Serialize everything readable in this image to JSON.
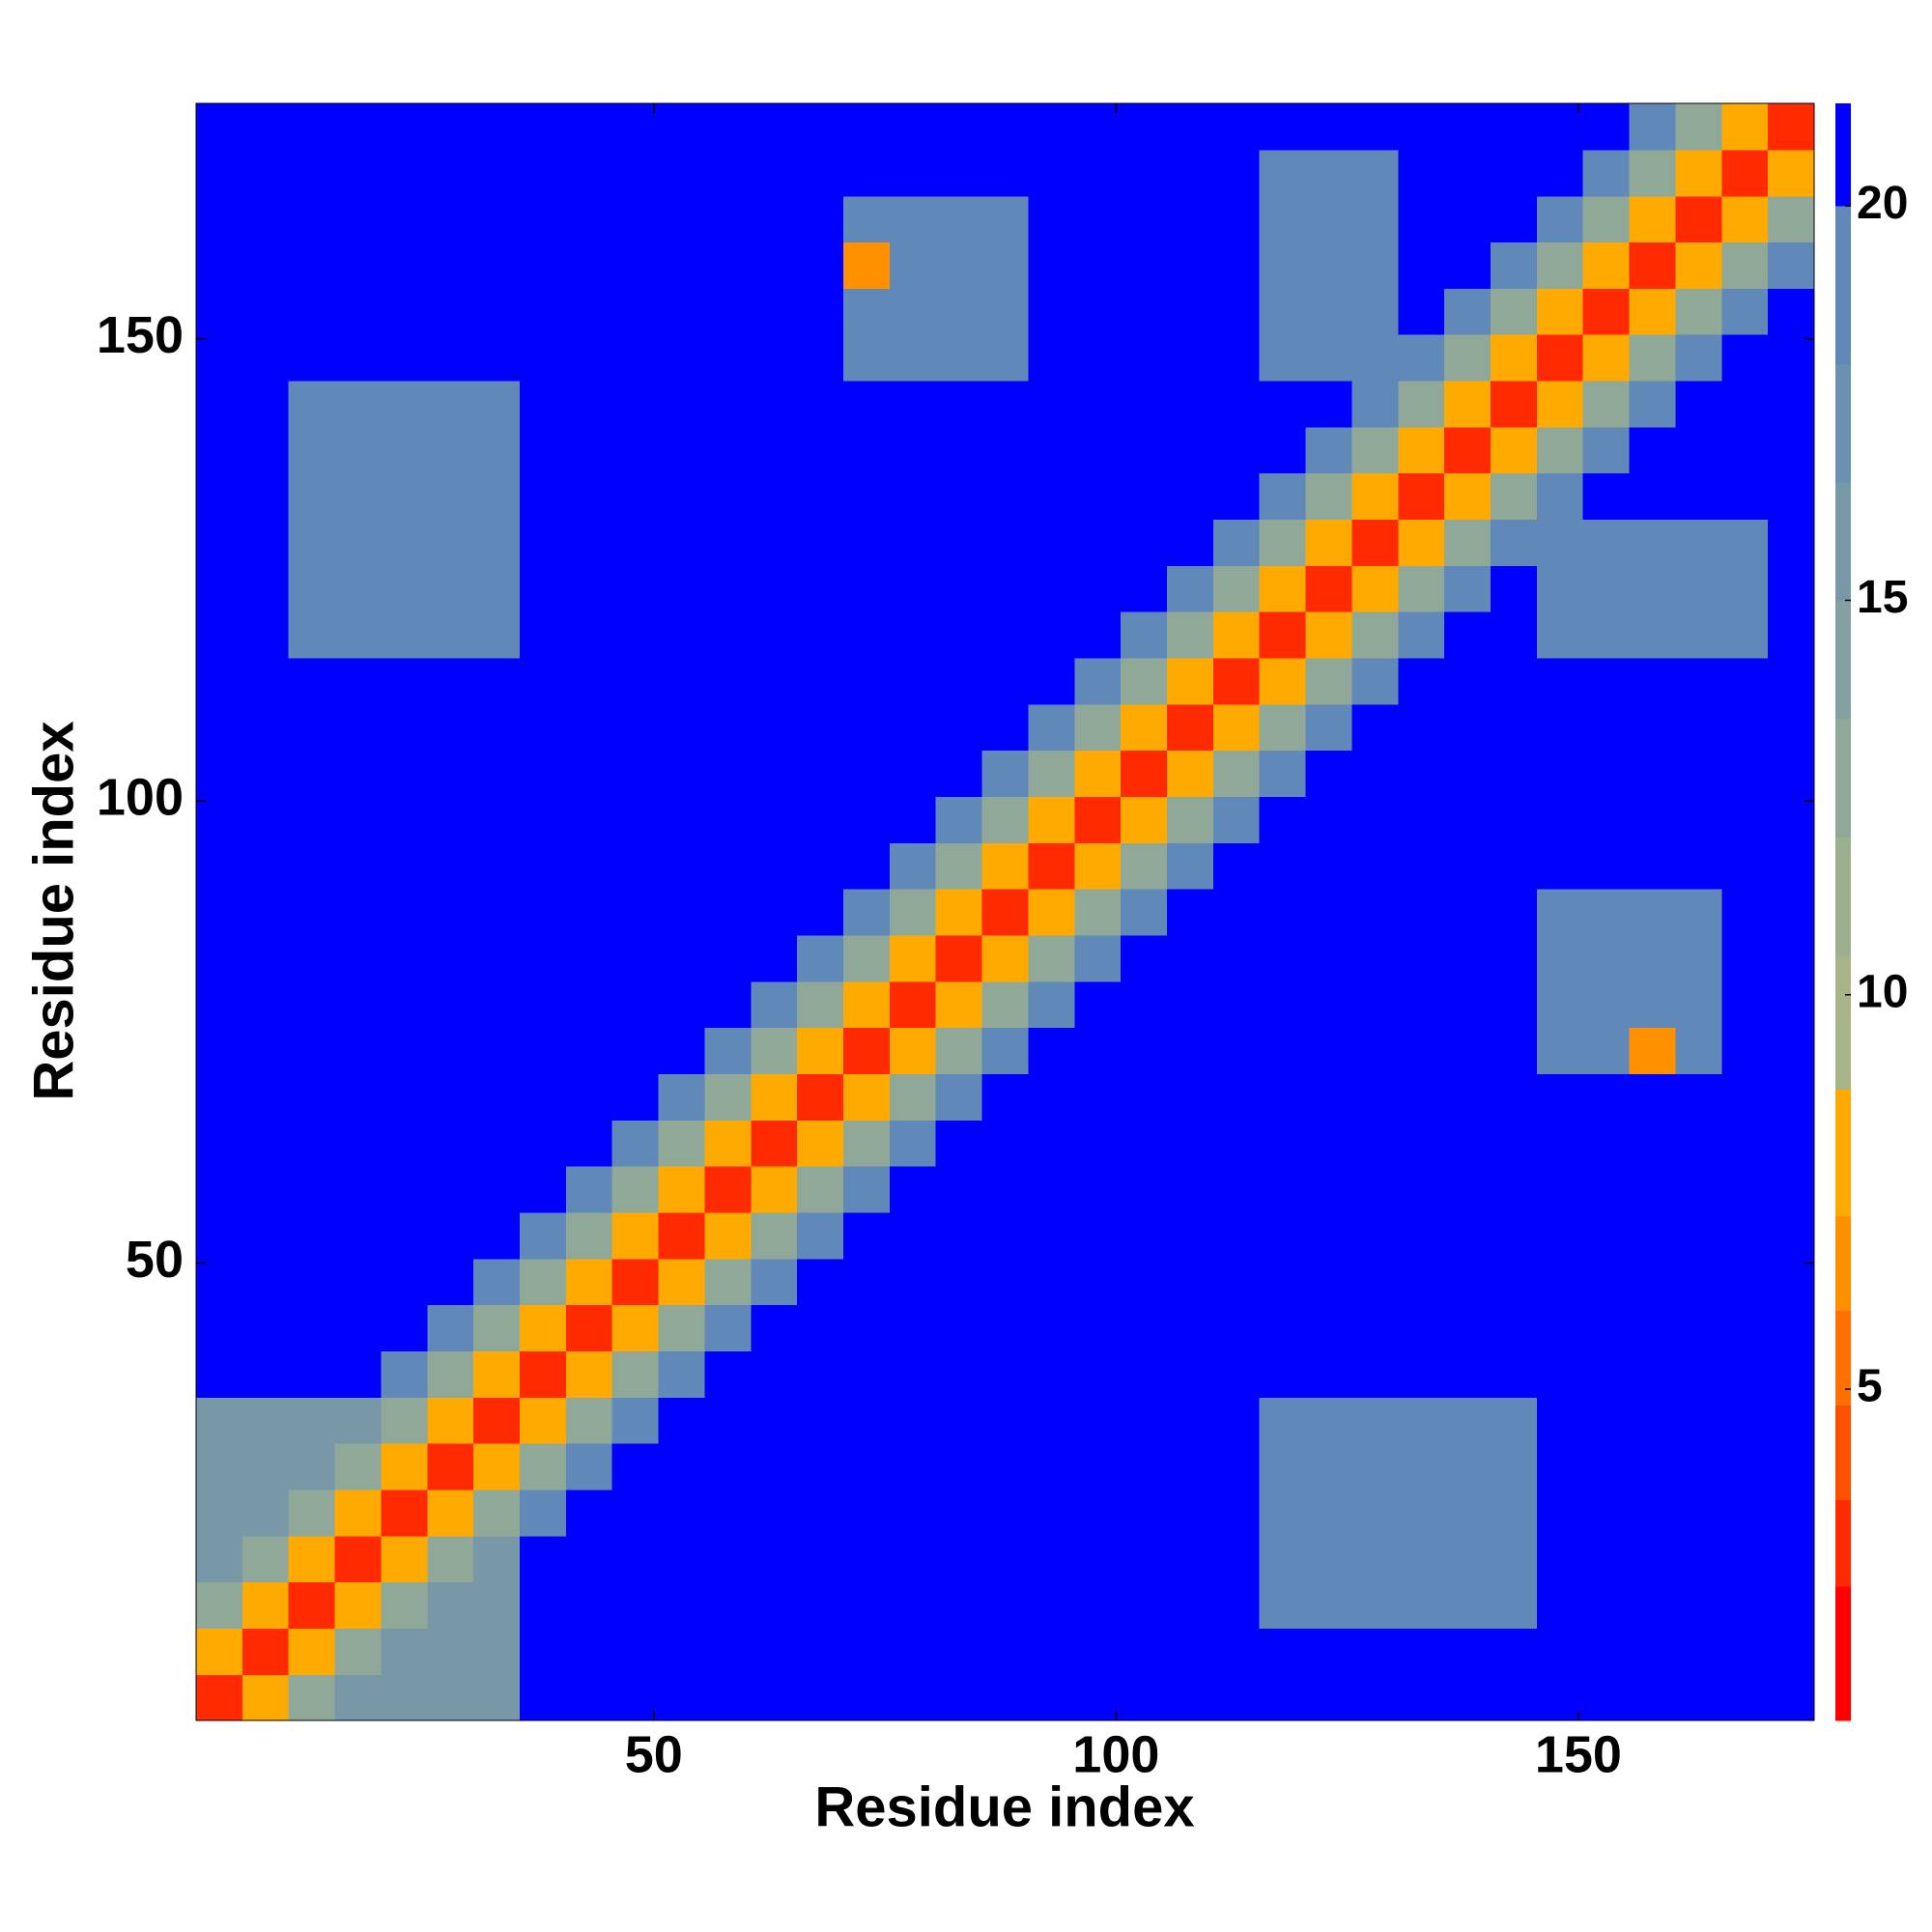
{
  "chart_data": {
    "type": "heatmap",
    "x_label": "Residue index",
    "y_label": "Residue index",
    "x": [
      3,
      8,
      13,
      18,
      23,
      28,
      33,
      38,
      43,
      48,
      53,
      58,
      63,
      68,
      73,
      78,
      83,
      88,
      93,
      98,
      103,
      108,
      113,
      118,
      123,
      128,
      133,
      138,
      143,
      148,
      153,
      158,
      163,
      168,
      173
    ],
    "y": [
      3,
      8,
      13,
      18,
      23,
      28,
      33,
      38,
      43,
      48,
      53,
      58,
      63,
      68,
      73,
      78,
      83,
      88,
      93,
      98,
      103,
      108,
      113,
      118,
      123,
      128,
      133,
      138,
      143,
      148,
      153,
      158,
      163,
      168,
      173
    ],
    "xlim": [
      0.5,
      175.5
    ],
    "ylim": [
      0.5,
      175.5
    ],
    "xticks": [
      50,
      100,
      150
    ],
    "yticks": [
      50,
      100,
      150
    ],
    "zlim": [
      0.8,
      21.3
    ],
    "zticks": [
      5,
      10,
      15,
      20
    ],
    "levels": [
      0.8,
      2.5,
      3.6,
      4.8,
      6,
      7.2,
      8.8,
      10.5,
      12,
      13.5,
      15,
      16.5,
      18,
      20,
      21.3
    ],
    "colors": [
      "#ff0000",
      "#ff2a00",
      "#ff5000",
      "#ff7000",
      "#ff9000",
      "#ffaa00",
      "#a8b488",
      "#9cb090",
      "#90a898",
      "#84a0a0",
      "#7898a8",
      "#6c90b0",
      "#6088b8",
      "#0000ff"
    ],
    "z": [
      [
        3,
        8,
        13,
        16,
        16,
        16,
        16,
        21,
        21,
        21,
        21,
        21,
        21,
        21,
        21,
        21,
        21,
        21,
        21,
        21,
        21,
        21,
        21,
        21,
        21,
        21,
        21,
        21,
        21,
        21,
        21,
        21,
        21,
        21,
        21
      ],
      [
        8,
        3,
        8,
        13,
        16,
        16,
        16,
        21,
        21,
        21,
        21,
        21,
        21,
        21,
        21,
        21,
        21,
        21,
        21,
        21,
        21,
        21,
        21,
        21,
        21,
        21,
        21,
        21,
        21,
        21,
        21,
        21,
        21,
        21,
        21
      ],
      [
        13,
        8,
        3,
        8,
        13,
        16,
        16,
        21,
        21,
        21,
        21,
        21,
        21,
        21,
        21,
        21,
        21,
        21,
        21,
        21,
        21,
        21,
        21,
        18,
        18,
        18,
        18,
        18,
        18,
        21,
        21,
        21,
        21,
        21,
        21
      ],
      [
        16,
        13,
        8,
        3,
        8,
        13,
        16,
        21,
        21,
        21,
        21,
        21,
        21,
        21,
        21,
        21,
        21,
        21,
        21,
        21,
        21,
        21,
        21,
        18,
        18,
        18,
        18,
        18,
        18,
        21,
        21,
        21,
        21,
        21,
        21
      ],
      [
        16,
        16,
        13,
        8,
        3,
        8,
        13,
        18,
        21,
        21,
        21,
        21,
        21,
        21,
        21,
        21,
        21,
        21,
        21,
        21,
        21,
        21,
        21,
        18,
        18,
        18,
        18,
        18,
        18,
        21,
        21,
        21,
        21,
        21,
        21
      ],
      [
        16,
        16,
        16,
        13,
        8,
        3,
        8,
        13,
        18,
        21,
        21,
        21,
        21,
        21,
        21,
        21,
        21,
        21,
        21,
        21,
        21,
        21,
        21,
        18,
        18,
        18,
        18,
        18,
        18,
        21,
        21,
        21,
        21,
        21,
        21
      ],
      [
        16,
        16,
        16,
        16,
        13,
        8,
        3,
        8,
        13,
        18,
        21,
        21,
        21,
        21,
        21,
        21,
        21,
        21,
        21,
        21,
        21,
        21,
        21,
        18,
        18,
        18,
        18,
        18,
        18,
        21,
        21,
        21,
        21,
        21,
        21
      ],
      [
        21,
        21,
        21,
        21,
        18,
        13,
        8,
        3,
        8,
        13,
        18,
        21,
        21,
        21,
        21,
        21,
        21,
        21,
        21,
        21,
        21,
        21,
        21,
        21,
        21,
        21,
        21,
        21,
        21,
        21,
        21,
        21,
        21,
        21,
        21
      ],
      [
        21,
        21,
        21,
        21,
        21,
        18,
        13,
        8,
        3,
        8,
        13,
        18,
        21,
        21,
        21,
        21,
        21,
        21,
        21,
        21,
        21,
        21,
        21,
        21,
        21,
        21,
        21,
        21,
        21,
        21,
        21,
        21,
        21,
        21,
        21
      ],
      [
        21,
        21,
        21,
        21,
        21,
        21,
        18,
        13,
        8,
        3,
        8,
        13,
        18,
        21,
        21,
        21,
        21,
        21,
        21,
        21,
        21,
        21,
        21,
        21,
        21,
        21,
        21,
        21,
        21,
        21,
        21,
        21,
        21,
        21,
        21
      ],
      [
        21,
        21,
        21,
        21,
        21,
        21,
        21,
        18,
        13,
        8,
        3,
        8,
        13,
        18,
        21,
        21,
        21,
        21,
        21,
        21,
        21,
        21,
        21,
        21,
        21,
        21,
        21,
        21,
        21,
        21,
        21,
        21,
        21,
        21,
        21
      ],
      [
        21,
        21,
        21,
        21,
        21,
        21,
        21,
        21,
        18,
        13,
        8,
        3,
        8,
        13,
        18,
        21,
        21,
        21,
        21,
        21,
        21,
        21,
        21,
        21,
        21,
        21,
        21,
        21,
        21,
        21,
        21,
        21,
        21,
        21,
        21
      ],
      [
        21,
        21,
        21,
        21,
        21,
        21,
        21,
        21,
        21,
        18,
        13,
        8,
        3,
        8,
        13,
        18,
        21,
        21,
        21,
        21,
        21,
        21,
        21,
        21,
        21,
        21,
        21,
        21,
        21,
        21,
        21,
        21,
        21,
        21,
        21
      ],
      [
        21,
        21,
        21,
        21,
        21,
        21,
        21,
        21,
        21,
        21,
        18,
        13,
        8,
        3,
        8,
        13,
        18,
        21,
        21,
        21,
        21,
        21,
        21,
        21,
        21,
        21,
        21,
        21,
        21,
        21,
        21,
        21,
        21,
        21,
        21
      ],
      [
        21,
        21,
        21,
        21,
        21,
        21,
        21,
        21,
        21,
        21,
        21,
        18,
        13,
        8,
        3,
        8,
        13,
        18,
        21,
        21,
        21,
        21,
        21,
        21,
        21,
        21,
        21,
        21,
        21,
        18,
        18,
        6,
        18,
        21,
        21
      ],
      [
        21,
        21,
        21,
        21,
        21,
        21,
        21,
        21,
        21,
        21,
        21,
        21,
        18,
        13,
        8,
        3,
        8,
        13,
        18,
        21,
        21,
        21,
        21,
        21,
        21,
        21,
        21,
        21,
        21,
        18,
        18,
        18,
        18,
        21,
        21
      ],
      [
        21,
        21,
        21,
        21,
        21,
        21,
        21,
        21,
        21,
        21,
        21,
        21,
        21,
        18,
        13,
        8,
        3,
        8,
        13,
        18,
        21,
        21,
        21,
        21,
        21,
        21,
        21,
        21,
        21,
        18,
        18,
        18,
        18,
        21,
        21
      ],
      [
        21,
        21,
        21,
        21,
        21,
        21,
        21,
        21,
        21,
        21,
        21,
        21,
        21,
        21,
        18,
        13,
        8,
        3,
        8,
        13,
        18,
        21,
        21,
        21,
        21,
        21,
        21,
        21,
        21,
        18,
        18,
        18,
        18,
        21,
        21
      ],
      [
        21,
        21,
        21,
        21,
        21,
        21,
        21,
        21,
        21,
        21,
        21,
        21,
        21,
        21,
        21,
        18,
        13,
        8,
        3,
        8,
        13,
        18,
        21,
        21,
        21,
        21,
        21,
        21,
        21,
        21,
        21,
        21,
        21,
        21,
        21
      ],
      [
        21,
        21,
        21,
        21,
        21,
        21,
        21,
        21,
        21,
        21,
        21,
        21,
        21,
        21,
        21,
        21,
        18,
        13,
        8,
        3,
        8,
        13,
        18,
        21,
        21,
        21,
        21,
        21,
        21,
        21,
        21,
        21,
        21,
        21,
        21
      ],
      [
        21,
        21,
        21,
        21,
        21,
        21,
        21,
        21,
        21,
        21,
        21,
        21,
        21,
        21,
        21,
        21,
        21,
        18,
        13,
        8,
        3,
        8,
        13,
        18,
        21,
        21,
        21,
        21,
        21,
        21,
        21,
        21,
        21,
        21,
        21
      ],
      [
        21,
        21,
        21,
        21,
        21,
        21,
        21,
        21,
        21,
        21,
        21,
        21,
        21,
        21,
        21,
        21,
        21,
        21,
        18,
        13,
        8,
        3,
        8,
        13,
        18,
        21,
        21,
        21,
        21,
        21,
        21,
        21,
        21,
        21,
        21
      ],
      [
        21,
        21,
        21,
        21,
        21,
        21,
        21,
        21,
        21,
        21,
        21,
        21,
        21,
        21,
        21,
        21,
        21,
        21,
        21,
        18,
        13,
        8,
        3,
        8,
        13,
        18,
        21,
        21,
        21,
        21,
        21,
        21,
        21,
        21,
        21
      ],
      [
        21,
        21,
        18,
        18,
        18,
        18,
        18,
        21,
        21,
        21,
        21,
        21,
        21,
        21,
        21,
        21,
        21,
        21,
        21,
        21,
        18,
        13,
        8,
        3,
        8,
        13,
        18,
        21,
        21,
        18,
        18,
        18,
        18,
        18,
        21
      ],
      [
        21,
        21,
        18,
        18,
        18,
        18,
        18,
        21,
        21,
        21,
        21,
        21,
        21,
        21,
        21,
        21,
        21,
        21,
        21,
        21,
        21,
        18,
        13,
        8,
        3,
        8,
        13,
        18,
        21,
        18,
        18,
        18,
        18,
        18,
        21
      ],
      [
        21,
        21,
        18,
        18,
        18,
        18,
        18,
        21,
        21,
        21,
        21,
        21,
        21,
        21,
        21,
        21,
        21,
        21,
        21,
        21,
        21,
        21,
        18,
        13,
        8,
        3,
        8,
        13,
        18,
        18,
        18,
        18,
        18,
        18,
        21
      ],
      [
        21,
        21,
        18,
        18,
        18,
        18,
        18,
        21,
        21,
        21,
        21,
        21,
        21,
        21,
        21,
        21,
        21,
        21,
        21,
        21,
        21,
        21,
        21,
        18,
        13,
        8,
        3,
        8,
        13,
        18,
        21,
        21,
        21,
        21,
        21
      ],
      [
        21,
        21,
        18,
        18,
        18,
        18,
        18,
        21,
        21,
        21,
        21,
        21,
        21,
        21,
        21,
        21,
        21,
        21,
        21,
        21,
        21,
        21,
        21,
        21,
        18,
        13,
        8,
        3,
        8,
        13,
        18,
        21,
        21,
        21,
        21
      ],
      [
        21,
        21,
        18,
        18,
        18,
        18,
        18,
        21,
        21,
        21,
        21,
        21,
        21,
        21,
        21,
        21,
        21,
        21,
        21,
        21,
        21,
        21,
        21,
        21,
        21,
        18,
        13,
        8,
        3,
        8,
        13,
        18,
        21,
        21,
        21
      ],
      [
        21,
        21,
        21,
        21,
        21,
        21,
        21,
        21,
        21,
        21,
        21,
        21,
        21,
        21,
        18,
        18,
        18,
        18,
        21,
        21,
        21,
        21,
        21,
        18,
        18,
        18,
        18,
        13,
        8,
        3,
        8,
        13,
        18,
        21,
        21
      ],
      [
        21,
        21,
        21,
        21,
        21,
        21,
        21,
        21,
        21,
        21,
        21,
        21,
        21,
        21,
        18,
        18,
        18,
        18,
        21,
        21,
        21,
        21,
        21,
        18,
        18,
        18,
        21,
        18,
        13,
        8,
        3,
        8,
        13,
        18,
        21
      ],
      [
        21,
        21,
        21,
        21,
        21,
        21,
        21,
        21,
        21,
        21,
        21,
        21,
        21,
        21,
        6,
        18,
        18,
        18,
        21,
        21,
        21,
        21,
        21,
        18,
        18,
        18,
        21,
        21,
        18,
        13,
        8,
        3,
        8,
        13,
        18
      ],
      [
        21,
        21,
        21,
        21,
        21,
        21,
        21,
        21,
        21,
        21,
        21,
        21,
        21,
        21,
        18,
        18,
        18,
        18,
        21,
        21,
        21,
        21,
        21,
        18,
        18,
        18,
        21,
        21,
        21,
        18,
        13,
        8,
        3,
        8,
        13
      ],
      [
        21,
        21,
        21,
        21,
        21,
        21,
        21,
        21,
        21,
        21,
        21,
        21,
        21,
        21,
        21,
        21,
        21,
        21,
        21,
        21,
        21,
        21,
        21,
        18,
        18,
        18,
        21,
        21,
        21,
        21,
        18,
        13,
        8,
        3,
        8
      ],
      [
        21,
        21,
        21,
        21,
        21,
        21,
        21,
        21,
        21,
        21,
        21,
        21,
        21,
        21,
        21,
        21,
        21,
        21,
        21,
        21,
        21,
        21,
        21,
        21,
        21,
        21,
        21,
        21,
        21,
        21,
        21,
        18,
        13,
        8,
        3
      ]
    ]
  }
}
